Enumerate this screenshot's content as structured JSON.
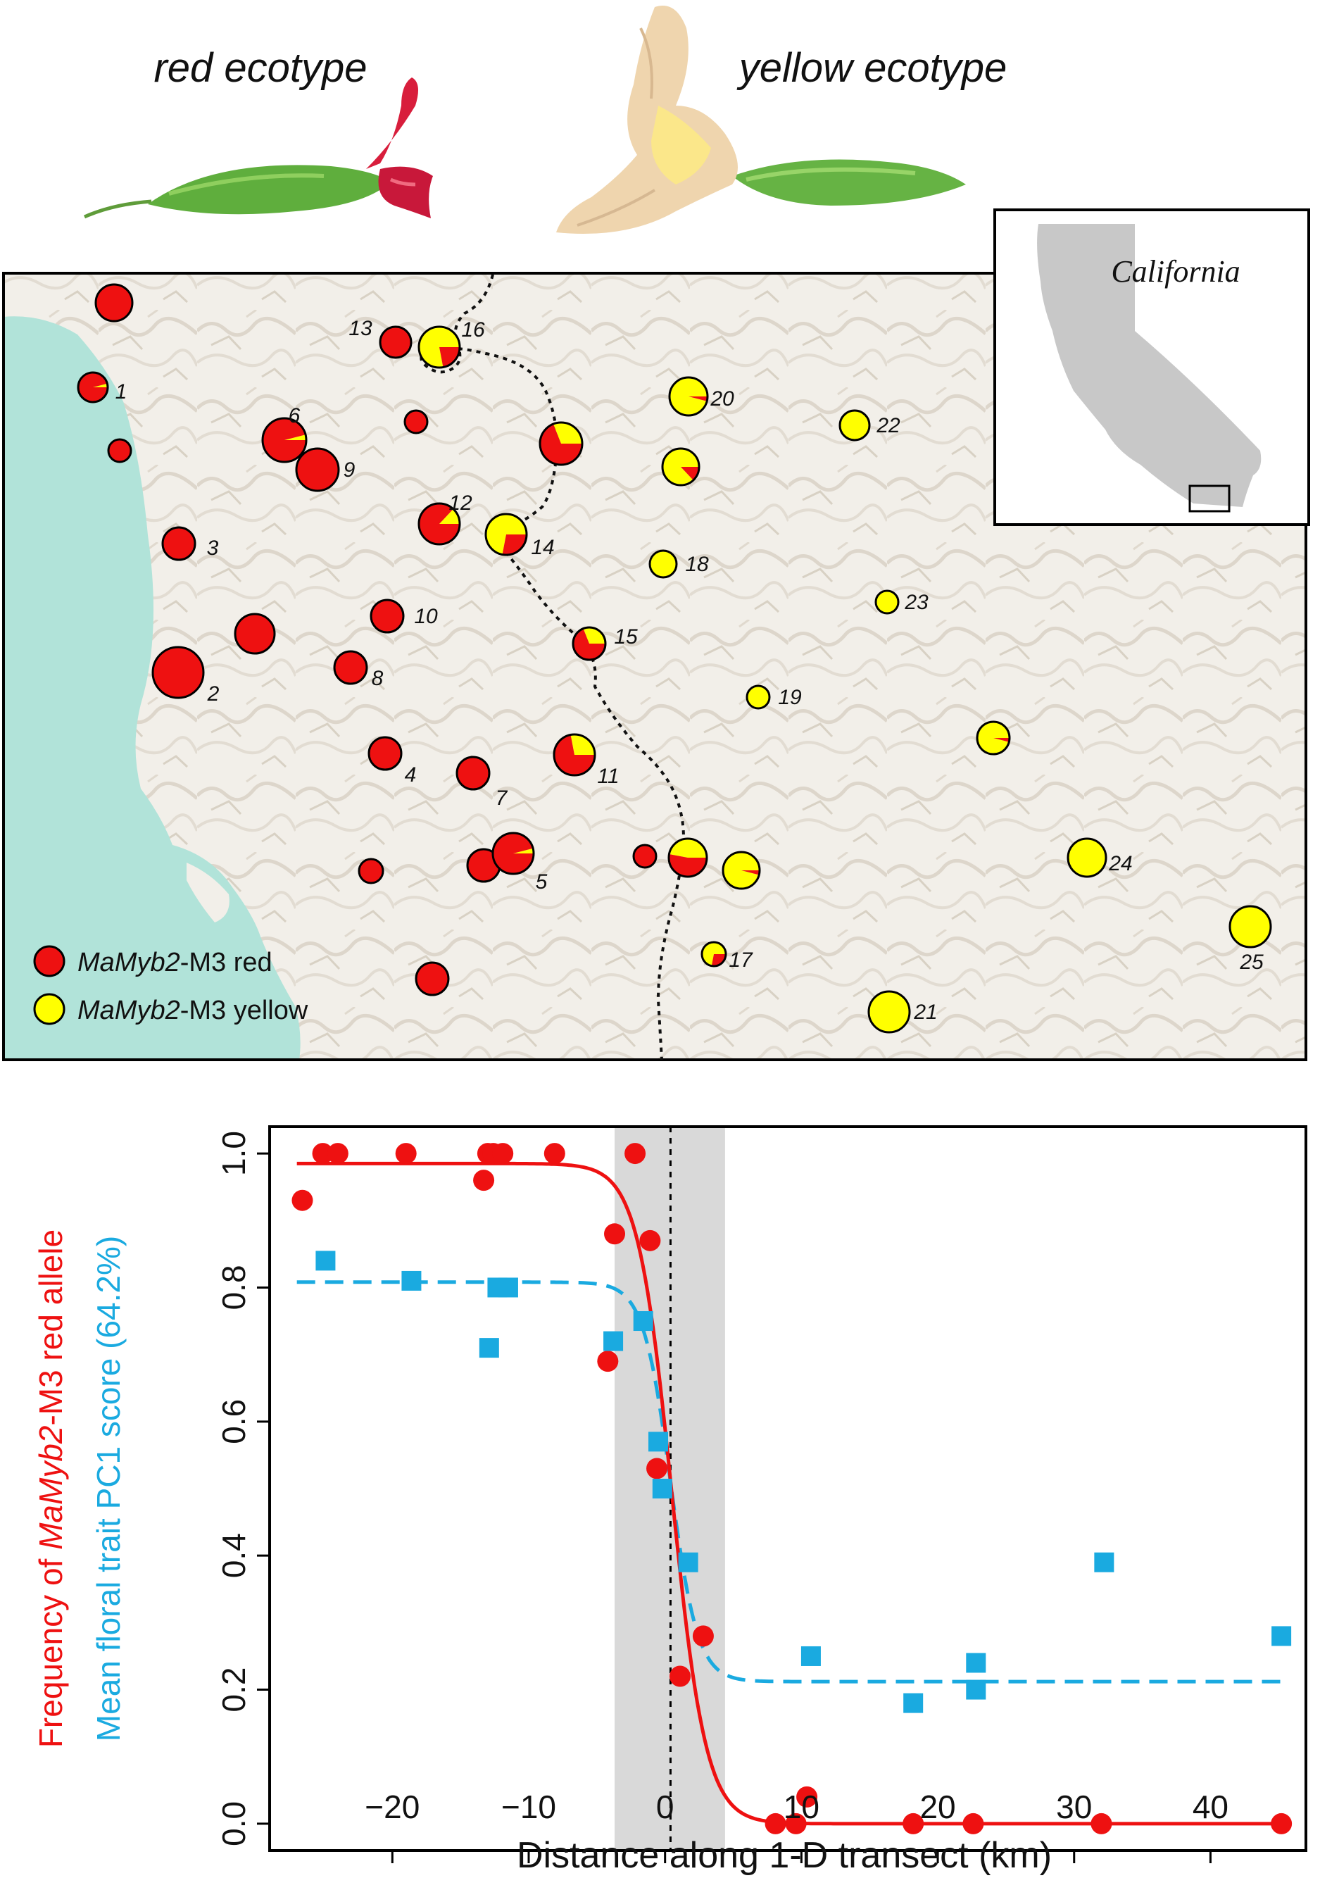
{
  "header": {
    "red_ecotype": "red ecotype",
    "yellow_ecotype": "yellow ecotype"
  },
  "inset": {
    "label": "California"
  },
  "map": {
    "legend": [
      {
        "prefix": "MaMyb2",
        "suffix": "-M3 red",
        "color": "#ee1111"
      },
      {
        "prefix": "MaMyb2",
        "suffix": "-M3 yellow",
        "color": "#ffff00"
      }
    ],
    "sites": [
      {
        "label": "",
        "red_fraction": 1.0
      },
      {
        "label": "1",
        "red_fraction": 0.96
      },
      {
        "label": "",
        "red_fraction": 1.0
      },
      {
        "label": "6",
        "red_fraction": 0.96
      },
      {
        "label": "9",
        "red_fraction": 1.0
      },
      {
        "label": "3",
        "red_fraction": 1.0
      },
      {
        "label": "2",
        "red_fraction": 1.0
      },
      {
        "label": "",
        "red_fraction": 1.0
      },
      {
        "label": "8",
        "red_fraction": 1.0
      },
      {
        "label": "10",
        "red_fraction": 1.0
      },
      {
        "label": "4",
        "red_fraction": 1.0
      },
      {
        "label": "7",
        "red_fraction": 1.0
      },
      {
        "label": "",
        "red_fraction": 1.0
      },
      {
        "label": "",
        "red_fraction": 1.0
      },
      {
        "label": "5",
        "red_fraction": 0.96
      },
      {
        "label": "",
        "red_fraction": 1.0
      },
      {
        "label": "13",
        "red_fraction": 1.0
      },
      {
        "label": "",
        "red_fraction": 1.0
      },
      {
        "label": "12",
        "red_fraction": 0.87
      },
      {
        "label": "16",
        "red_fraction": 0.22
      },
      {
        "label": "",
        "red_fraction": 0.69
      },
      {
        "label": "14",
        "red_fraction": 0.28
      },
      {
        "label": "15",
        "red_fraction": 0.69
      },
      {
        "label": "11",
        "red_fraction": 0.72
      },
      {
        "label": "",
        "red_fraction": 1.0
      },
      {
        "label": "",
        "red_fraction": 0.53
      },
      {
        "label": "",
        "red_fraction": 0.04
      },
      {
        "label": "17",
        "red_fraction": 0.28
      },
      {
        "label": "20",
        "red_fraction": 0.04
      },
      {
        "label": "",
        "red_fraction": 0.13
      },
      {
        "label": "18",
        "red_fraction": 0.0
      },
      {
        "label": "22",
        "red_fraction": 0.0
      },
      {
        "label": "23",
        "red_fraction": 0.0
      },
      {
        "label": "19",
        "red_fraction": 0.0
      },
      {
        "label": "",
        "red_fraction": 0.04
      },
      {
        "label": "24",
        "red_fraction": 0.0
      },
      {
        "label": "21",
        "red_fraction": 0.0
      },
      {
        "label": "25",
        "red_fraction": 0.0
      }
    ]
  },
  "chart_data": {
    "type": "scatter",
    "xlabel": "Distance along 1-D transect (km)",
    "ylabel_red": "Frequency of MaMyb2-M3 red allele",
    "ylabel_red_parts": [
      "Frequency of ",
      "MaMyb2",
      "-M3 red allele"
    ],
    "ylabel_blue": "Mean  floral trait PC1 score (64.2%)",
    "xlim": [
      -29,
      47
    ],
    "ylim": [
      -0.04,
      1.04
    ],
    "xticks": [
      -20,
      -10,
      0,
      10,
      20,
      30,
      40
    ],
    "xtick_labels": [
      "−20",
      "−10",
      "0",
      "10",
      "20",
      "30",
      "40"
    ],
    "yticks": [
      0.0,
      0.2,
      0.4,
      0.6,
      0.8,
      1.0
    ],
    "ytick_labels": [
      "0.0",
      "0.2",
      "0.4",
      "0.6",
      "0.8",
      "1.0"
    ],
    "center_line_x": 0.4,
    "shaded_region_x": [
      -3.7,
      4.4
    ],
    "series": [
      {
        "color": "#ee1111",
        "marker": "circle",
        "points": [
          [
            -26.6,
            0.93
          ],
          [
            -25.1,
            1.0
          ],
          [
            -24.0,
            1.0
          ],
          [
            -19.0,
            1.0
          ],
          [
            -13.3,
            0.96
          ],
          [
            -13.0,
            1.0
          ],
          [
            -12.6,
            1.0
          ],
          [
            -11.9,
            1.0
          ],
          [
            -8.1,
            1.0
          ],
          [
            -4.2,
            0.69
          ],
          [
            -3.7,
            0.88
          ],
          [
            -2.2,
            1.0
          ],
          [
            -1.1,
            0.87
          ],
          [
            -0.6,
            0.53
          ],
          [
            1.1,
            0.22
          ],
          [
            2.8,
            0.28
          ],
          [
            8.1,
            0.0
          ],
          [
            9.6,
            0.0
          ],
          [
            10.4,
            0.04
          ],
          [
            18.2,
            0.0
          ],
          [
            22.6,
            0.0
          ],
          [
            32.0,
            0.0
          ],
          [
            45.2,
            0.0
          ]
        ],
        "fit": {
          "left": 0.985,
          "right": 0.0,
          "center": 0.5,
          "width": 1.25
        }
      },
      {
        "color": "#1aaae0",
        "marker": "square",
        "points": [
          [
            -24.9,
            0.84
          ],
          [
            -18.6,
            0.81
          ],
          [
            -12.9,
            0.71
          ],
          [
            -12.3,
            0.8
          ],
          [
            -11.5,
            0.8
          ],
          [
            -3.8,
            0.72
          ],
          [
            -1.6,
            0.75
          ],
          [
            -0.5,
            0.57
          ],
          [
            -0.2,
            0.5
          ],
          [
            1.7,
            0.39
          ],
          [
            10.7,
            0.25
          ],
          [
            18.2,
            0.18
          ],
          [
            22.8,
            0.24
          ],
          [
            22.8,
            0.2
          ],
          [
            32.2,
            0.39
          ],
          [
            45.2,
            0.28
          ]
        ],
        "fit": {
          "left": 0.808,
          "right": 0.212,
          "center": 0.4,
          "width": 1.0
        }
      }
    ]
  }
}
